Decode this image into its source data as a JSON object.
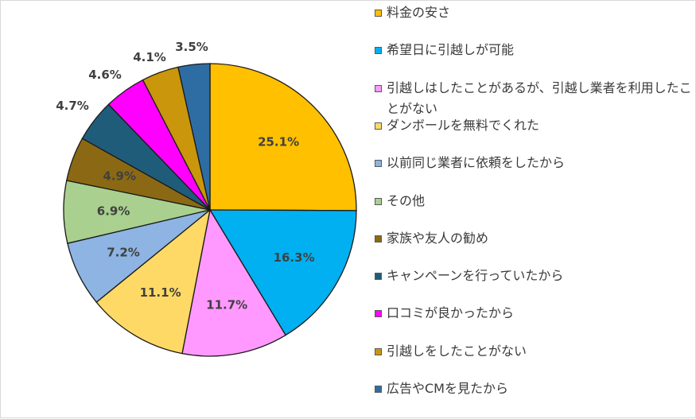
{
  "chart_data": {
    "type": "pie",
    "title": "",
    "legend_position": "right",
    "slices": [
      {
        "label": "料金の安さ",
        "value": 25.1,
        "display": "25.1%",
        "color": "#FFC000"
      },
      {
        "label": "希望日に引越しが可能",
        "value": 16.3,
        "display": "16.3%",
        "color": "#00B0F0"
      },
      {
        "label": "引越しはしたことがあるが、引越し業者を利用したことがない",
        "value": 11.7,
        "display": "11.7%",
        "color": "#FF99FF"
      },
      {
        "label": "ダンボールを無料でくれた",
        "value": 11.1,
        "display": "11.1%",
        "color": "#FFD966"
      },
      {
        "label": "以前同じ業者に依頼をしたから",
        "value": 7.2,
        "display": "7.2%",
        "color": "#8DB4E2"
      },
      {
        "label": "その他",
        "value": 6.9,
        "display": "6.9%",
        "color": "#A9D08E"
      },
      {
        "label": "家族や友人の勧め",
        "value": 4.9,
        "display": "4.9%",
        "color": "#8B6914"
      },
      {
        "label": "キャンペーンを行っていたから",
        "value": 4.7,
        "display": "4.7%",
        "color": "#1F5C7A"
      },
      {
        "label": "口コミが良かったから",
        "value": 4.6,
        "display": "4.6%",
        "color": "#FF00FF"
      },
      {
        "label": "引越しをしたことがない",
        "value": 4.1,
        "display": "4.1%",
        "color": "#C9960C"
      },
      {
        "label": "広告やCMを見たから",
        "value": 3.5,
        "display": "3.5%",
        "color": "#2E6DA4"
      }
    ]
  }
}
